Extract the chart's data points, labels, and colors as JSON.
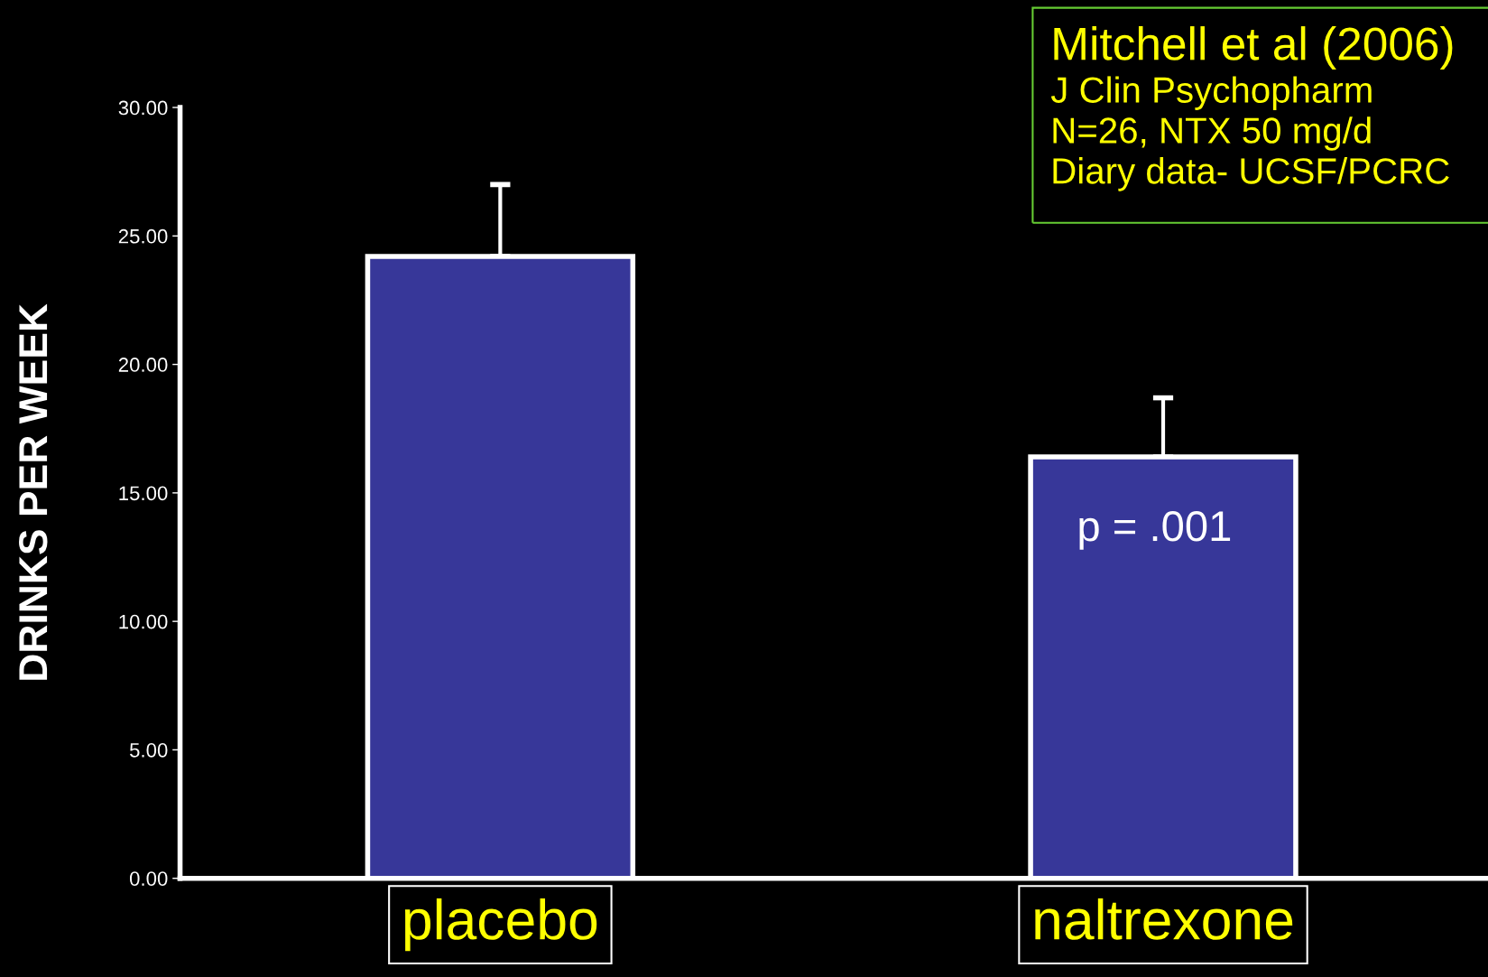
{
  "chart_data": {
    "type": "bar",
    "title": "Mitchell et al (2006)",
    "subtitle": "J Clin Psychopharm\nN=26, NTX 50 mg/d\nDiary data- UCSF/PCRC",
    "ylabel": "DRINKS PER WEEK",
    "categories": [
      "placebo",
      "naltrexone"
    ],
    "values": [
      24.2,
      16.4
    ],
    "errors": [
      [
        24.2,
        27.0
      ],
      [
        16.4,
        18.7
      ]
    ],
    "color": "#373799",
    "ylim": [
      0,
      30
    ],
    "yticks": [
      {
        "value": 0,
        "label": "0.00"
      },
      {
        "value": 5,
        "label": "5.00"
      },
      {
        "value": 10,
        "label": "10.00"
      },
      {
        "value": 15,
        "label": "15.00"
      },
      {
        "value": 20,
        "label": "20.00"
      },
      {
        "value": 25,
        "label": "25.00"
      },
      {
        "value": 30,
        "label": "30.00"
      }
    ],
    "annotations": [
      "p = .001"
    ],
    "grid": false,
    "legend": false
  }
}
